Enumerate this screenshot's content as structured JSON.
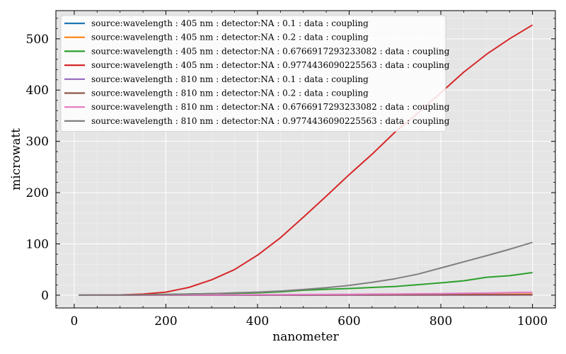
{
  "chart_data": {
    "type": "line",
    "title": "",
    "xlabel": "nanometer",
    "ylabel": "microwatt",
    "xlim": [
      -40,
      1050
    ],
    "ylim": [
      -25,
      555
    ],
    "xticks": [
      0,
      200,
      400,
      600,
      800,
      1000
    ],
    "yticks": [
      0,
      100,
      200,
      300,
      400,
      500
    ],
    "x_minor_step": 50,
    "y_minor_step": 20,
    "grid": true,
    "legend_position": "top-left",
    "x": [
      10,
      50,
      100,
      150,
      200,
      250,
      300,
      350,
      400,
      450,
      500,
      550,
      600,
      650,
      700,
      750,
      800,
      850,
      900,
      950,
      1000
    ],
    "series": [
      {
        "name": "source:wavelength : 405 nm : detector:NA : 0.1 : data : coupling",
        "color": "#1f77b4",
        "values": [
          0.0,
          0.02,
          0.03,
          0.05,
          0.08,
          0.1,
          0.13,
          0.16,
          0.2,
          0.25,
          0.3,
          0.35,
          0.4,
          0.45,
          0.5,
          0.55,
          0.6,
          0.65,
          0.7,
          0.75,
          0.8
        ]
      },
      {
        "name": "source:wavelength : 405 nm : detector:NA : 0.2 : data : coupling",
        "color": "#ff7f0e",
        "values": [
          0.0,
          0.05,
          0.1,
          0.15,
          0.2,
          0.3,
          0.4,
          0.5,
          0.6,
          0.7,
          0.8,
          0.9,
          1.0,
          1.1,
          1.2,
          1.35,
          1.5,
          1.6,
          1.7,
          1.85,
          2.0
        ]
      },
      {
        "name": "source:wavelength : 405 nm : detector:NA : 0.6766917293233082 : data : coupling",
        "color": "#2ca02c",
        "values": [
          0.0,
          0.2,
          0.5,
          1.0,
          1.5,
          2.2,
          2.9,
          3.5,
          4.5,
          6.5,
          9.5,
          11.5,
          13.0,
          15.0,
          17.0,
          20.5,
          24.0,
          28.0,
          35.0,
          38.0,
          44.0
        ]
      },
      {
        "name": "source:wavelength : 405 nm : detector:NA : 0.9774436090225563 : data : coupling",
        "color": "#d62728",
        "values": [
          0.0,
          0.1,
          0.5,
          2.0,
          6.0,
          15.0,
          30.0,
          50.0,
          78.0,
          112.0,
          152.0,
          193.0,
          235.0,
          275.0,
          318.0,
          355.0,
          395.0,
          435.0,
          470.0,
          500.0,
          527.0
        ]
      },
      {
        "name": "source:wavelength : 810 nm : detector:NA : 0.1 : data : coupling",
        "color": "#9467bd",
        "values": [
          0.0,
          0.01,
          0.02,
          0.03,
          0.05,
          0.06,
          0.08,
          0.1,
          0.12,
          0.14,
          0.16,
          0.18,
          0.2,
          0.22,
          0.24,
          0.26,
          0.28,
          0.3,
          0.32,
          0.34,
          0.36
        ]
      },
      {
        "name": "source:wavelength : 810 nm : detector:NA : 0.2 : data : coupling",
        "color": "#8c564b",
        "values": [
          0.0,
          0.02,
          0.05,
          0.08,
          0.1,
          0.15,
          0.2,
          0.25,
          0.3,
          0.35,
          0.4,
          0.45,
          0.5,
          0.55,
          0.6,
          0.65,
          0.7,
          0.75,
          0.8,
          0.85,
          0.9
        ]
      },
      {
        "name": "source:wavelength : 810 nm : detector:NA : 0.6766917293233082 : data : coupling",
        "color": "#e377c2",
        "values": [
          0.0,
          0.05,
          0.1,
          0.2,
          0.3,
          0.4,
          0.5,
          0.6,
          0.8,
          1.0,
          1.2,
          1.4,
          1.7,
          2.0,
          2.3,
          2.7,
          3.1,
          3.6,
          4.2,
          5.0,
          5.8
        ]
      },
      {
        "name": "source:wavelength : 810 nm : detector:NA : 0.9774436090225563 : data : coupling",
        "color": "#7f7f7f",
        "values": [
          0.0,
          0.1,
          0.3,
          0.7,
          1.2,
          2.0,
          3.0,
          4.5,
          6.0,
          8.0,
          11.0,
          14.5,
          19.0,
          25.0,
          32.0,
          41.0,
          53.0,
          65.0,
          77.0,
          89.5,
          103.0
        ]
      }
    ]
  }
}
